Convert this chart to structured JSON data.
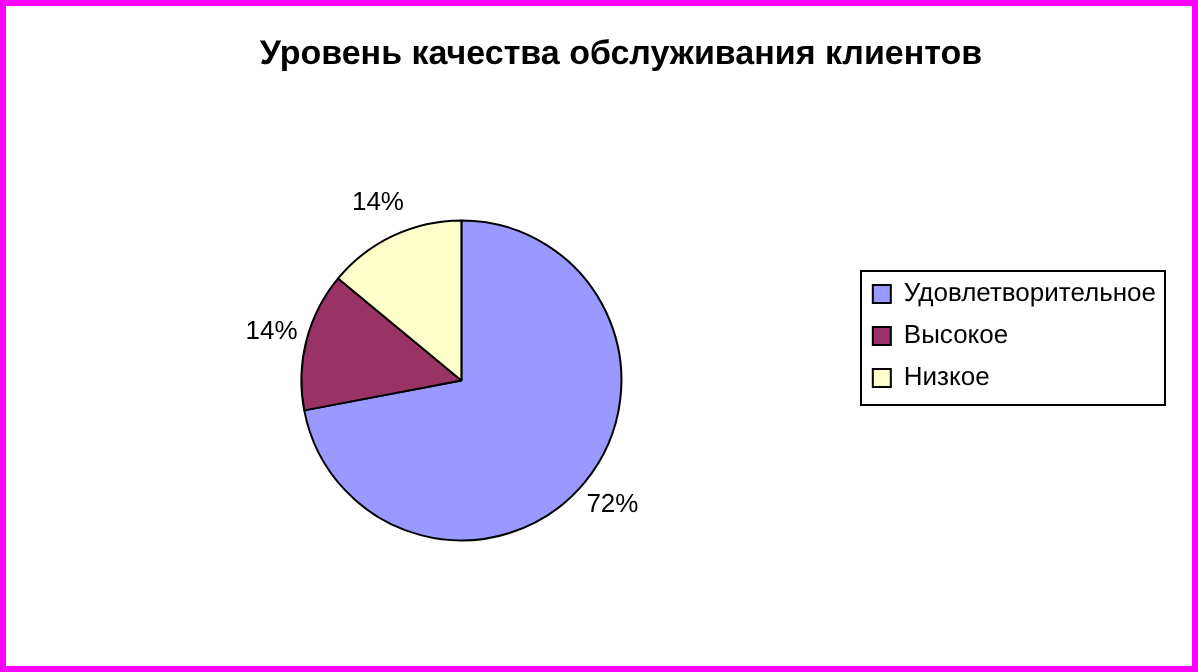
{
  "chart_data": {
    "type": "pie",
    "title": "Уровень качества обслуживания клиентов",
    "categories": [
      "Удовлетворительное",
      "Высокое",
      "Низкое"
    ],
    "values": [
      72,
      14,
      14
    ],
    "colors": [
      "#9999ff",
      "#993366",
      "#ffffcc"
    ],
    "value_labels": [
      "72%",
      "14%",
      "14%"
    ],
    "legend": "right"
  }
}
